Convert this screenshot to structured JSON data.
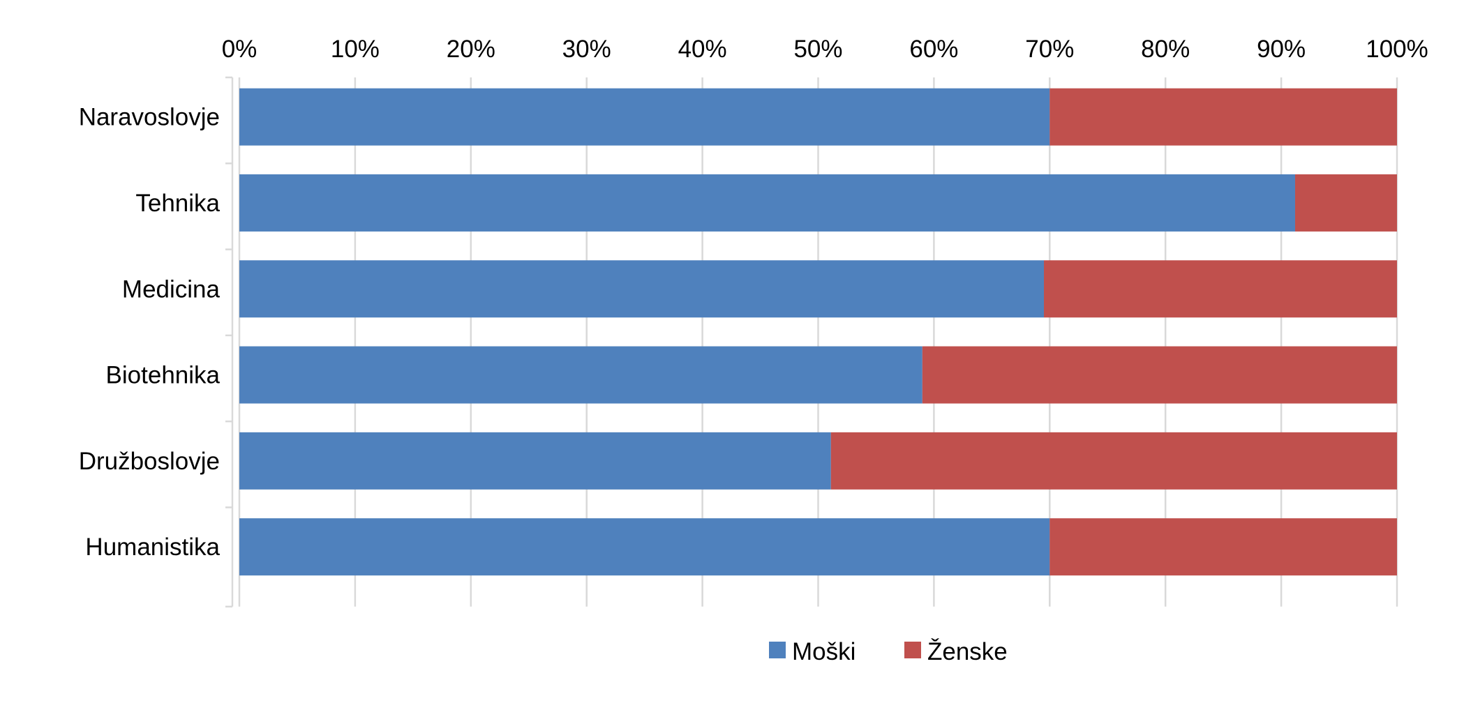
{
  "chart_data": {
    "type": "bar",
    "orientation": "horizontal",
    "stacked": "percent",
    "categories": [
      "Naravoslovje",
      "Tehnika",
      "Medicina",
      "Biotehnika",
      "Družboslovje",
      "Humanistika"
    ],
    "series": [
      {
        "name": "Moški",
        "color": "#4f81bd",
        "values": [
          70,
          91.2,
          69.5,
          59,
          51.1,
          70
        ]
      },
      {
        "name": "Ženske",
        "color": "#c0504d",
        "values": [
          30,
          8.8,
          30.5,
          41,
          48.9,
          30
        ]
      }
    ],
    "x_ticks": [
      "0%",
      "10%",
      "20%",
      "30%",
      "40%",
      "50%",
      "60%",
      "70%",
      "80%",
      "90%",
      "100%"
    ],
    "xlim": [
      0,
      100
    ],
    "x_axis_position": "top",
    "grid": true,
    "legend": {
      "position": "bottom"
    }
  }
}
